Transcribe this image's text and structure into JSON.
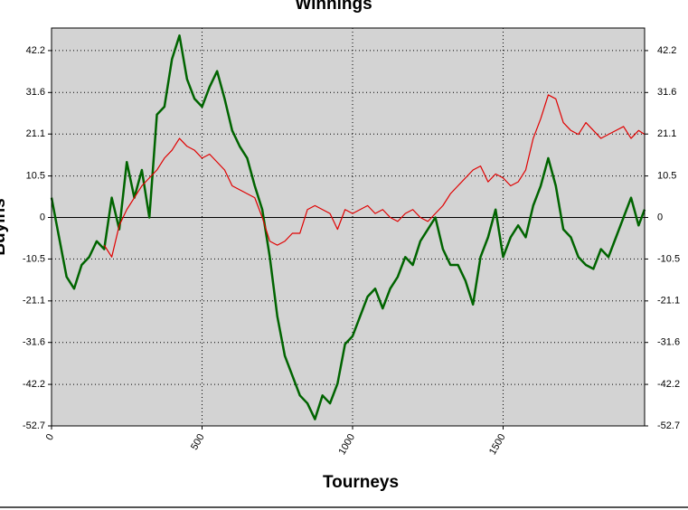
{
  "chart_data": {
    "type": "line",
    "title": "Winnings",
    "x_label": "Tourneys",
    "y_label": "Buyins",
    "x": [
      0,
      25,
      50,
      75,
      100,
      125,
      150,
      175,
      200,
      225,
      250,
      275,
      300,
      325,
      350,
      375,
      400,
      425,
      450,
      475,
      500,
      525,
      550,
      575,
      600,
      625,
      650,
      675,
      700,
      725,
      750,
      775,
      800,
      825,
      850,
      875,
      900,
      925,
      950,
      975,
      1000,
      1025,
      1050,
      1075,
      1100,
      1125,
      1150,
      1175,
      1200,
      1225,
      1250,
      1275,
      1300,
      1325,
      1350,
      1375,
      1400,
      1425,
      1450,
      1475,
      1500,
      1525,
      1550,
      1575,
      1600,
      1625,
      1650,
      1675,
      1700,
      1725,
      1750,
      1775,
      1800,
      1825,
      1850,
      1875,
      1900,
      1925,
      1950,
      1970
    ],
    "series": [
      {
        "color": "#006400",
        "values": [
          5,
          -5,
          -15,
          -18,
          -12,
          -10,
          -6,
          -8,
          5,
          -3,
          14,
          5,
          12,
          0,
          26,
          28,
          40,
          46,
          35,
          30,
          28,
          33,
          37,
          30,
          22,
          18,
          15,
          8,
          2,
          -10,
          -25,
          -35,
          -40,
          -45,
          -47,
          -51,
          -45,
          -47,
          -42,
          -32,
          -30,
          -25,
          -20,
          -18,
          -23,
          -18,
          -15,
          -10,
          -12,
          -6,
          -3,
          0,
          -8,
          -12,
          -12,
          -16,
          -22,
          -10,
          -5,
          2,
          -10,
          -5,
          -2,
          -5,
          3,
          8,
          15,
          8,
          -3,
          -5,
          -10,
          -12,
          -13,
          -8,
          -10,
          -5,
          0,
          5,
          -2,
          2
        ]
      },
      {
        "color": "#e00000",
        "values": [
          null,
          null,
          null,
          null,
          null,
          null,
          null,
          -7,
          -10,
          -2,
          2,
          5,
          8,
          10,
          12,
          15,
          17,
          20,
          18,
          17,
          15,
          16,
          14,
          12,
          8,
          7,
          6,
          5,
          0,
          -6,
          -7,
          -6,
          -4,
          -4,
          2,
          3,
          2,
          1,
          -3,
          2,
          1,
          2,
          3,
          1,
          2,
          0,
          -1,
          1,
          2,
          0,
          -1,
          1,
          3,
          6,
          8,
          10,
          12,
          13,
          9,
          11,
          10,
          8,
          9,
          12,
          20,
          25,
          31,
          30,
          24,
          22,
          21,
          24,
          22,
          20,
          21,
          22,
          23,
          20,
          22,
          21
        ]
      }
    ],
    "xlim": [
      0,
      1970
    ],
    "xticks": [
      0,
      500,
      1000,
      1500
    ],
    "ylim": [
      -52.7,
      47.9
    ],
    "yticks": [
      -52.7,
      -42.2,
      -31.6,
      -21.1,
      -10.5,
      0.0,
      10.5,
      21.1,
      31.6,
      42.2
    ],
    "grid": true
  }
}
